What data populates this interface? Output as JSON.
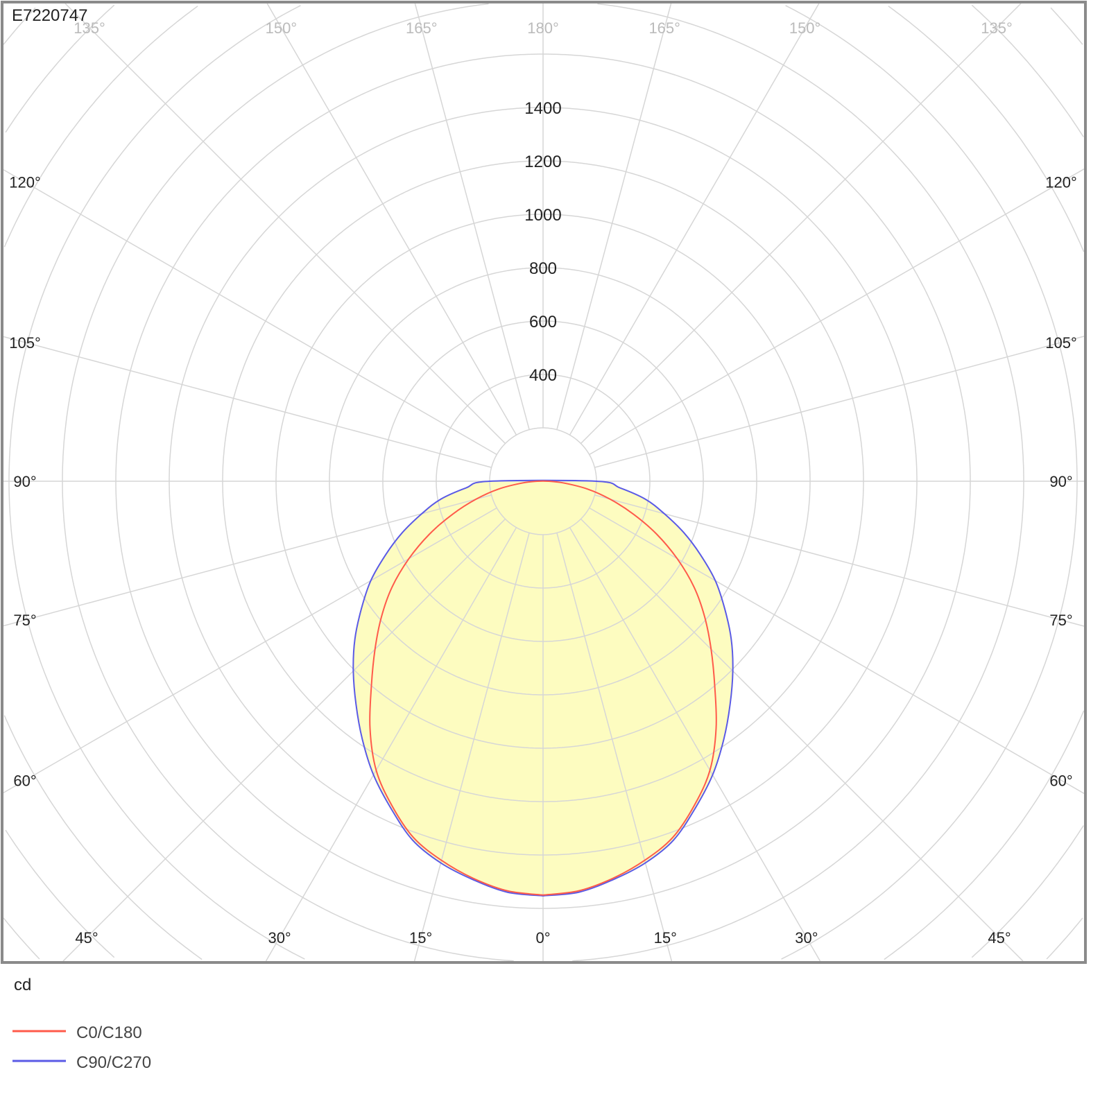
{
  "chart_data": {
    "type": "polar",
    "title": "E7220747",
    "unit_label": "cd",
    "radial_ticks": [
      400,
      600,
      800,
      1000,
      1200,
      1400
    ],
    "radial_step": 200,
    "angle_labels_lower": [
      "0°",
      "15°",
      "30°",
      "45°",
      "60°",
      "75°",
      "90°",
      "105°",
      "120°"
    ],
    "angle_labels_upper": [
      "135°",
      "150°",
      "165°",
      "180°"
    ],
    "grid": true,
    "legend_position": "bottom-left",
    "gamma": [
      0,
      5,
      10,
      15,
      20,
      25,
      30,
      35,
      40,
      45,
      50,
      55,
      60,
      65,
      70,
      75,
      80,
      85,
      90
    ],
    "series": [
      {
        "name": "C0/C180",
        "color": "#ff5a4a",
        "values": [
          1550,
          1540,
          1510,
          1470,
          1420,
          1340,
          1250,
          1130,
          1000,
          890,
          790,
          690,
          580,
          470,
          360,
          260,
          170,
          80,
          20
        ]
      },
      {
        "name": "C90/C270",
        "color": "#5a5ae6",
        "values": [
          1553,
          1545,
          1515,
          1480,
          1430,
          1350,
          1270,
          1180,
          1090,
          1005,
          920,
          830,
          745,
          650,
          560,
          470,
          390,
          290,
          200
        ]
      }
    ],
    "fill_color": "#fdfcc0"
  }
}
